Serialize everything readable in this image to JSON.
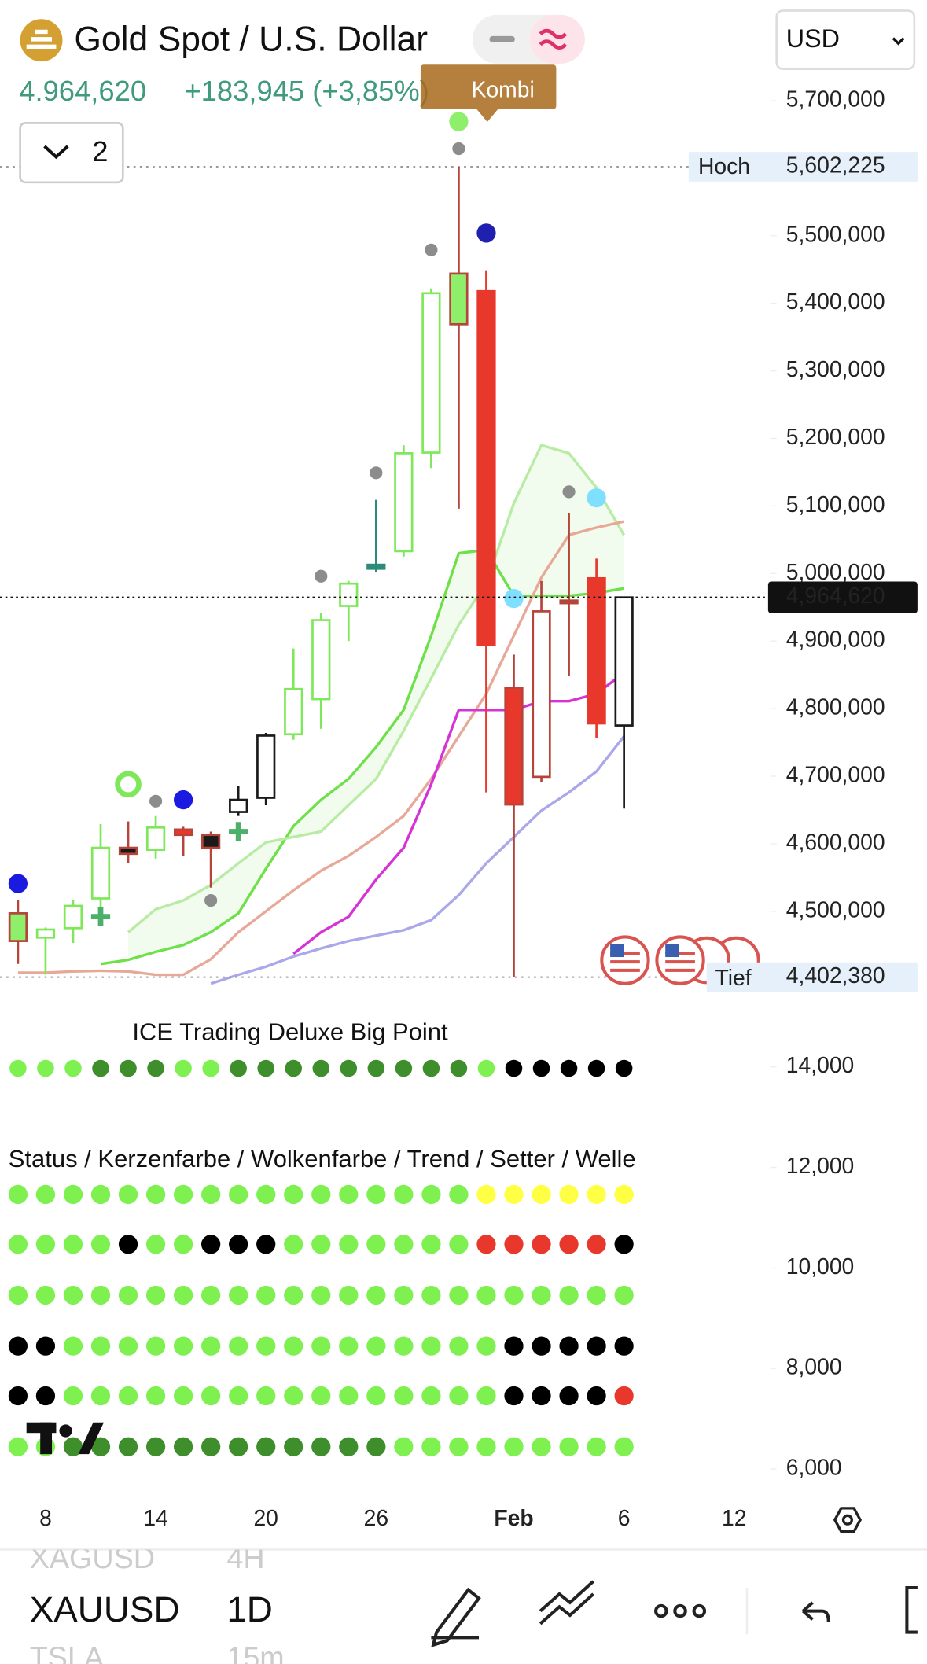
{
  "header": {
    "symbol_name": "Gold Spot / U.S. Dollar",
    "price": "4.964,620",
    "change": "+183,945 (+3,85%)",
    "currency": "USD",
    "tag": "Kombi",
    "indicator_count": "2"
  },
  "chart_data": {
    "type": "candlestick",
    "x_labels": [
      {
        "value": 1,
        "label": "8"
      },
      {
        "value": 5,
        "label": "14"
      },
      {
        "value": 9,
        "label": "20"
      },
      {
        "value": 13,
        "label": "26"
      },
      {
        "value": 18,
        "label": "Feb"
      },
      {
        "value": 22,
        "label": "6"
      },
      {
        "value": 26,
        "label": "12"
      }
    ],
    "ylim": [
      4382000,
      5849000
    ],
    "yticks": [
      {
        "value": 5700000,
        "label": "5,700,000"
      },
      {
        "value": 5500000,
        "label": "5,500,000"
      },
      {
        "value": 5400000,
        "label": "5,400,000"
      },
      {
        "value": 5300000,
        "label": "5,300,000"
      },
      {
        "value": 5200000,
        "label": "5,200,000"
      },
      {
        "value": 5100000,
        "label": "5,100,000"
      },
      {
        "value": 5000000,
        "label": "5,000,000"
      },
      {
        "value": 4900000,
        "label": "4,900,000"
      },
      {
        "value": 4800000,
        "label": "4,800,000"
      },
      {
        "value": 4700000,
        "label": "4,700,000"
      },
      {
        "value": 4600000,
        "label": "4,600,000"
      },
      {
        "value": 4500000,
        "label": "4,500,000"
      }
    ],
    "open": [
      4456000,
      4461000,
      4475000,
      4519000,
      4594000,
      4591000,
      4621000,
      4613000,
      4647000,
      4668000,
      4762000,
      4814000,
      4952000,
      5007000,
      5033000,
      5179000,
      5369000,
      5418000,
      4831000,
      4699000,
      4960000,
      4993000,
      4775000
    ],
    "high": [
      4516000,
      4476000,
      4516000,
      4629000,
      4633000,
      4641000,
      4625000,
      4618000,
      4685000,
      4764000,
      4889000,
      4942000,
      4989000,
      5109000,
      5190000,
      5422000,
      5602225,
      5449000,
      4880000,
      4989000,
      5090000,
      5022000,
      4966000
    ],
    "low": [
      4422000,
      4406000,
      4453000,
      4503000,
      4571000,
      4578000,
      4582000,
      4535000,
      4641000,
      4657000,
      4754000,
      4770000,
      4900000,
      5002000,
      5025000,
      5156000,
      5096000,
      4676000,
      4402380,
      4691000,
      4848000,
      4756000,
      4652000
    ],
    "close": [
      4497000,
      4473000,
      4508000,
      4594000,
      4585000,
      4624000,
      4613000,
      4594000,
      4665000,
      4760000,
      4829000,
      4931000,
      4985000,
      5013000,
      5178000,
      5415000,
      5444000,
      4894000,
      4658000,
      4944000,
      4956000,
      4778000,
      4964620
    ],
    "fill": [
      "#8ef06a",
      "#fff",
      "#fff",
      "#fff",
      "#1a1a1a",
      "#fff",
      "#e8382c",
      "#1a1a1a",
      "#fff",
      "#fff",
      "#fff",
      "#fff",
      "#fff",
      "#2e8b7a",
      "#fff",
      "#fff",
      "#8ef06a",
      "#e8382c",
      "#e8382c",
      "#fff",
      "#e8382c",
      "#e8382c",
      "#fff"
    ],
    "stroke": [
      "#b5443a",
      "#7ee85a",
      "#7ee85a",
      "#7ee85a",
      "#b5443a",
      "#7ee85a",
      "#b5443a",
      "#b5443a",
      "#1a1a1a",
      "#1a1a1a",
      "#7ee85a",
      "#7ee85a",
      "#7ee85a",
      "#2e8b7a",
      "#7ee85a",
      "#7ee85a",
      "#b5443a",
      "#e8382c",
      "#b5443a",
      "#b5443a",
      "#b5443a",
      "#e8382c",
      "#1a1a1a"
    ],
    "lines": [
      {
        "color": "#6ee04a",
        "values": [
          null,
          null,
          null,
          4422000,
          4428000,
          4440000,
          4450000,
          4469000,
          4497000,
          4563000,
          4626000,
          4665000,
          4696000,
          4743000,
          4798000,
          4908000,
          5030000,
          5035000,
          4967000,
          4967000,
          4967000,
          4971000,
          4978000
        ]
      },
      {
        "color": "#b8eca4",
        "values": [
          null,
          null,
          null,
          null,
          4469000,
          4503000,
          4516000,
          4539000,
          4571000,
          4602000,
          4610000,
          4618000,
          4657000,
          4696000,
          4767000,
          4845000,
          4924000,
          4986000,
          5104000,
          5190000,
          5178000,
          5127000,
          5057000
        ]
      },
      {
        "color": "#e8a898",
        "values": [
          4409000,
          4409000,
          4411000,
          4412000,
          4411000,
          4406000,
          4406000,
          4429000,
          4469000,
          4500000,
          4531000,
          4560000,
          4582000,
          4610000,
          4641000,
          4696000,
          4759000,
          4822000,
          4908000,
          4994000,
          5057000,
          5068000,
          5077000
        ]
      },
      {
        "color": "#d633d6",
        "values": [
          null,
          null,
          null,
          null,
          null,
          null,
          null,
          null,
          null,
          null,
          4437000,
          4469000,
          4492000,
          4547000,
          4594000,
          4688000,
          4798000,
          4798000,
          4798000,
          4811000,
          4811000,
          4822000,
          4853000
        ]
      },
      {
        "color": "#aaa8e8",
        "values": [
          null,
          null,
          null,
          null,
          null,
          null,
          null,
          4393000,
          4406000,
          4418000,
          4433000,
          4445000,
          4456000,
          4464000,
          4472000,
          4487000,
          4524000,
          4571000,
          4610000,
          4649000,
          4676000,
          4707000,
          4759000
        ]
      }
    ],
    "dots": [
      {
        "x": 0,
        "y": 4541000,
        "color": "#1a1ae0"
      },
      {
        "x": 5,
        "y": 4663000,
        "color": "#8c8c8c"
      },
      {
        "x": 6,
        "y": 4665000,
        "color": "#1a1ae0"
      },
      {
        "x": 7,
        "y": 4516000,
        "color": "#8c8c8c"
      },
      {
        "x": 11,
        "y": 4996000,
        "color": "#8c8c8c"
      },
      {
        "x": 13,
        "y": 5149000,
        "color": "#8c8c8c"
      },
      {
        "x": 15,
        "y": 5479000,
        "color": "#8c8c8c"
      },
      {
        "x": 16,
        "y": 5629000,
        "color": "#8c8c8c"
      },
      {
        "x": 16,
        "y": 5669000,
        "color": "#8ef06a"
      },
      {
        "x": 17,
        "y": 5504000,
        "color": "#2020b0"
      },
      {
        "x": 18,
        "y": 4963000,
        "color": "#7fdfff"
      },
      {
        "x": 20,
        "y": 5121000,
        "color": "#8c8c8c"
      },
      {
        "x": 21,
        "y": 5112000,
        "color": "#7fdfff"
      }
    ],
    "rings": [
      {
        "x": 4,
        "y": 4688000,
        "color": "#7ee85a"
      }
    ],
    "plus": [
      {
        "x": 3,
        "y": 4492000,
        "color": "#4caf6a"
      },
      {
        "x": 8,
        "y": 4618000,
        "color": "#4caf6a"
      }
    ],
    "high_mark": {
      "name": "Hoch",
      "value": 5602225,
      "label": "5,602,225"
    },
    "low_mark": {
      "name": "Tief",
      "value": 4402380,
      "label": "4,402,380"
    },
    "last": {
      "value": 4964620,
      "label": "4,964,620"
    }
  },
  "lower_panel": {
    "title1": "ICE Trading Deluxe Big Point",
    "title2": "Status / Kerzenfarbe / Wolkenfarbe / Trend / Setter / Welle",
    "ylim": [
      5600,
      15300
    ],
    "yticks": [
      {
        "value": 14000,
        "label": "14,000"
      },
      {
        "value": 12000,
        "label": "12,000"
      },
      {
        "value": 10000,
        "label": "10,000"
      },
      {
        "value": 8000,
        "label": "8,000"
      },
      {
        "value": 6000,
        "label": "6,000"
      }
    ],
    "rows": [
      [
        "#7ef050",
        "#7ef050",
        "#7ef050",
        "#3e8e2c",
        "#3e8e2c",
        "#3e8e2c",
        "#7ef050",
        "#7ef050",
        "#3e8e2c",
        "#3e8e2c",
        "#3e8e2c",
        "#3e8e2c",
        "#3e8e2c",
        "#3e8e2c",
        "#3e8e2c",
        "#3e8e2c",
        "#3e8e2c",
        "#7ef050",
        "#000",
        "#000",
        "#000",
        "#000",
        "#000"
      ],
      [
        "#7ef050",
        "#7ef050",
        "#7ef050",
        "#7ef050",
        "#7ef050",
        "#7ef050",
        "#7ef050",
        "#7ef050",
        "#7ef050",
        "#7ef050",
        "#7ef050",
        "#7ef050",
        "#7ef050",
        "#7ef050",
        "#7ef050",
        "#7ef050",
        "#7ef050",
        "#ff4",
        "#ff4",
        "#ff4",
        "#ff4",
        "#ff4",
        "#ff4"
      ],
      [
        "#7ef050",
        "#7ef050",
        "#7ef050",
        "#7ef050",
        "#000",
        "#7ef050",
        "#7ef050",
        "#000",
        "#000",
        "#000",
        "#7ef050",
        "#7ef050",
        "#7ef050",
        "#7ef050",
        "#7ef050",
        "#7ef050",
        "#7ef050",
        "#e8382c",
        "#e8382c",
        "#e8382c",
        "#e8382c",
        "#e8382c",
        "#000"
      ],
      [
        "#7ef050",
        "#7ef050",
        "#7ef050",
        "#7ef050",
        "#7ef050",
        "#7ef050",
        "#7ef050",
        "#7ef050",
        "#7ef050",
        "#7ef050",
        "#7ef050",
        "#7ef050",
        "#7ef050",
        "#7ef050",
        "#7ef050",
        "#7ef050",
        "#7ef050",
        "#7ef050",
        "#7ef050",
        "#7ef050",
        "#7ef050",
        "#7ef050",
        "#7ef050"
      ],
      [
        "#000",
        "#000",
        "#7ef050",
        "#7ef050",
        "#7ef050",
        "#7ef050",
        "#7ef050",
        "#7ef050",
        "#7ef050",
        "#7ef050",
        "#7ef050",
        "#7ef050",
        "#7ef050",
        "#7ef050",
        "#7ef050",
        "#7ef050",
        "#7ef050",
        "#7ef050",
        "#000",
        "#000",
        "#000",
        "#000",
        "#000"
      ],
      [
        "#000",
        "#000",
        "#7ef050",
        "#7ef050",
        "#7ef050",
        "#7ef050",
        "#7ef050",
        "#7ef050",
        "#7ef050",
        "#7ef050",
        "#7ef050",
        "#7ef050",
        "#7ef050",
        "#7ef050",
        "#7ef050",
        "#7ef050",
        "#7ef050",
        "#7ef050",
        "#000",
        "#000",
        "#000",
        "#000",
        "#e8382c"
      ],
      [
        "#7ef050",
        "#7ef050",
        "#3e8e2c",
        "#3e8e2c",
        "#3e8e2c",
        "#3e8e2c",
        "#3e8e2c",
        "#3e8e2c",
        "#3e8e2c",
        "#3e8e2c",
        "#3e8e2c",
        "#3e8e2c",
        "#3e8e2c",
        "#3e8e2c",
        "#7ef050",
        "#7ef050",
        "#7ef050",
        "#7ef050",
        "#7ef050",
        "#7ef050",
        "#7ef050",
        "#7ef050",
        "#7ef050"
      ]
    ]
  },
  "toolbar": {
    "symbols": [
      "XAGUSD",
      "XAUUSD",
      "TSLA"
    ],
    "intervals": [
      "4H",
      "1D",
      "15m"
    ]
  }
}
